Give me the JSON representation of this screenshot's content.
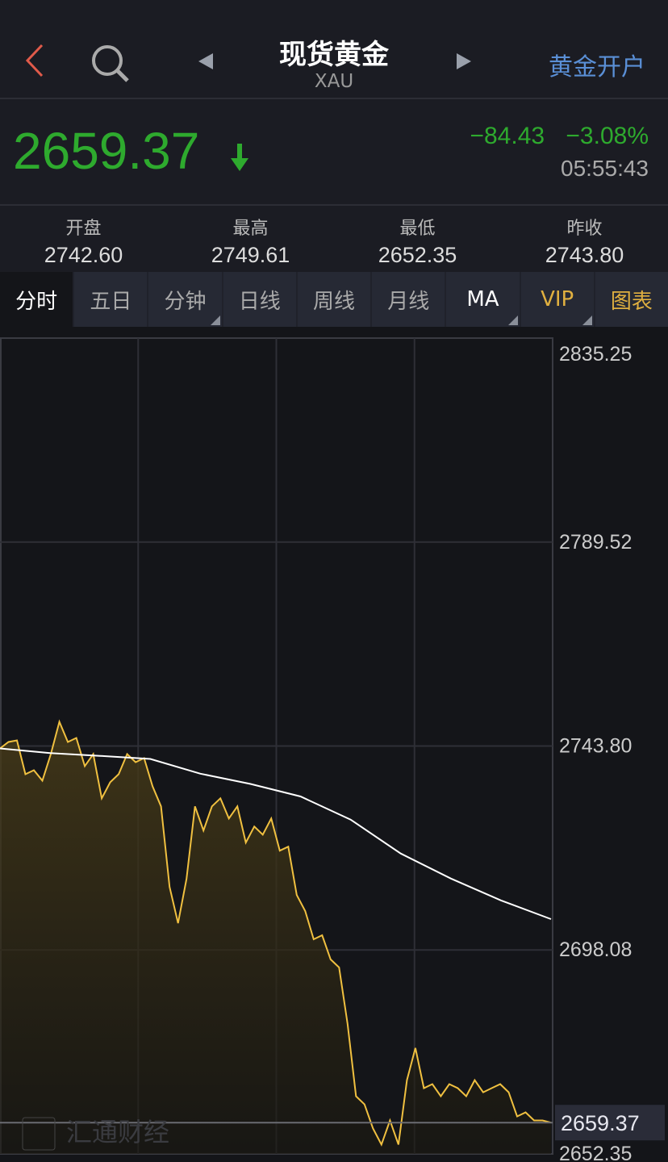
{
  "header": {
    "title": "现货黄金",
    "subtitle": "XAU",
    "open_account": "黄金开户"
  },
  "quote": {
    "price": "2659.37",
    "change": "−84.43",
    "change_pct": "−3.08%",
    "time": "05:55:43",
    "color": "#2eaa2e"
  },
  "stats": [
    {
      "label": "开盘",
      "value": "2742.60"
    },
    {
      "label": "最高",
      "value": "2749.61"
    },
    {
      "label": "最低",
      "value": "2652.35"
    },
    {
      "label": "昨收",
      "value": "2743.80"
    }
  ],
  "tabs": [
    "分时",
    "五日",
    "分钟",
    "日线",
    "周线",
    "月线",
    "MA",
    "VIP",
    "图表"
  ],
  "watermark": "汇通财经",
  "chart_data": {
    "type": "area",
    "ylim": [
      2652.35,
      2835.25
    ],
    "y_ticks": [
      "2835.25",
      "2789.52",
      "2743.80",
      "2698.08",
      "2652.35"
    ],
    "last_price_label": "2659.37",
    "grid": true,
    "series": [
      {
        "values": [
          2743.26,
          2744.7,
          2745.06,
          2737.48,
          2738.38,
          2736.04,
          2741.99,
          2749.22,
          2744.7,
          2745.61,
          2739.29,
          2741.99,
          2732.07,
          2735.68,
          2737.48,
          2741.99,
          2740.19,
          2741.09,
          2734.77,
          2730.26,
          2712.21,
          2704.09,
          2714.02,
          2730.26,
          2724.85,
          2730.26,
          2732.07,
          2727.55,
          2730.26,
          2722.14,
          2725.75,
          2723.94,
          2727.55,
          2720.33,
          2721.24,
          2710.41,
          2706.8,
          2700.48,
          2701.38,
          2695.97,
          2694.16,
          2681.53,
          2665.28,
          2663.48,
          2658.06,
          2654.45,
          2659.86,
          2654.45,
          2668.89,
          2676.11,
          2667.09,
          2667.99,
          2665.28,
          2667.99,
          2667.09,
          2665.28,
          2668.89,
          2666.18,
          2667.09,
          2667.99,
          2666.18,
          2660.77,
          2661.67,
          2659.86,
          2659.86,
          2659.37
        ],
        "color": "#f0c040"
      },
      {
        "values": [
          2743.26,
          2742.2,
          2741.6,
          2740.9,
          2737.6,
          2735.3,
          2732.5,
          2727.3,
          2719.7,
          2714.1,
          2709.2,
          2705.0
        ],
        "color": "#ffffff"
      }
    ]
  }
}
